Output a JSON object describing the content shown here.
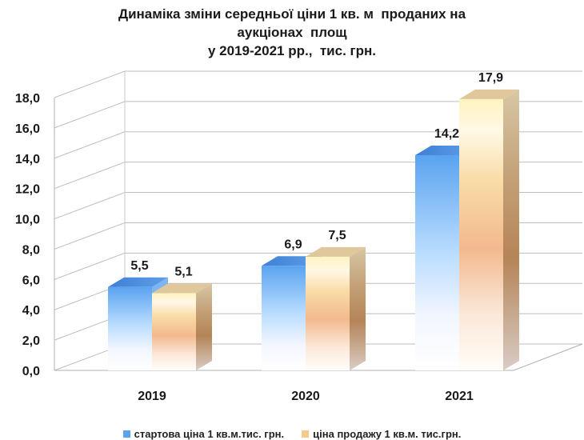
{
  "chart_data": {
    "type": "bar",
    "title_lines": [
      "Динаміка зміни середньої ціни 1 кв. м  проданих на",
      "аукціонах  площ",
      "у 2019-2021 рр.,  тис. грн."
    ],
    "categories": [
      "2019",
      "2020",
      "2021"
    ],
    "series": [
      {
        "name": "стартова ціна 1 кв.м.тис. грн.",
        "values": [
          5.5,
          6.9,
          14.2
        ],
        "labels": [
          "5,5",
          "6,9",
          "14,2"
        ]
      },
      {
        "name": "ціна продажу 1 кв.м. тис.грн.",
        "values": [
          5.1,
          7.5,
          17.9
        ],
        "labels": [
          "5,1",
          "7,5",
          "17,9"
        ]
      }
    ],
    "ylim": [
      0,
      18
    ],
    "yticks": [
      "0,0",
      "2,0",
      "4,0",
      "6,0",
      "8,0",
      "10,0",
      "12,0",
      "14,0",
      "16,0",
      "18,0"
    ],
    "grid": true,
    "legend_position": "bottom",
    "colors": {
      "series1": "#5aa3f0",
      "series2": "#f7c98a",
      "grid": "#bfbfbf"
    }
  }
}
